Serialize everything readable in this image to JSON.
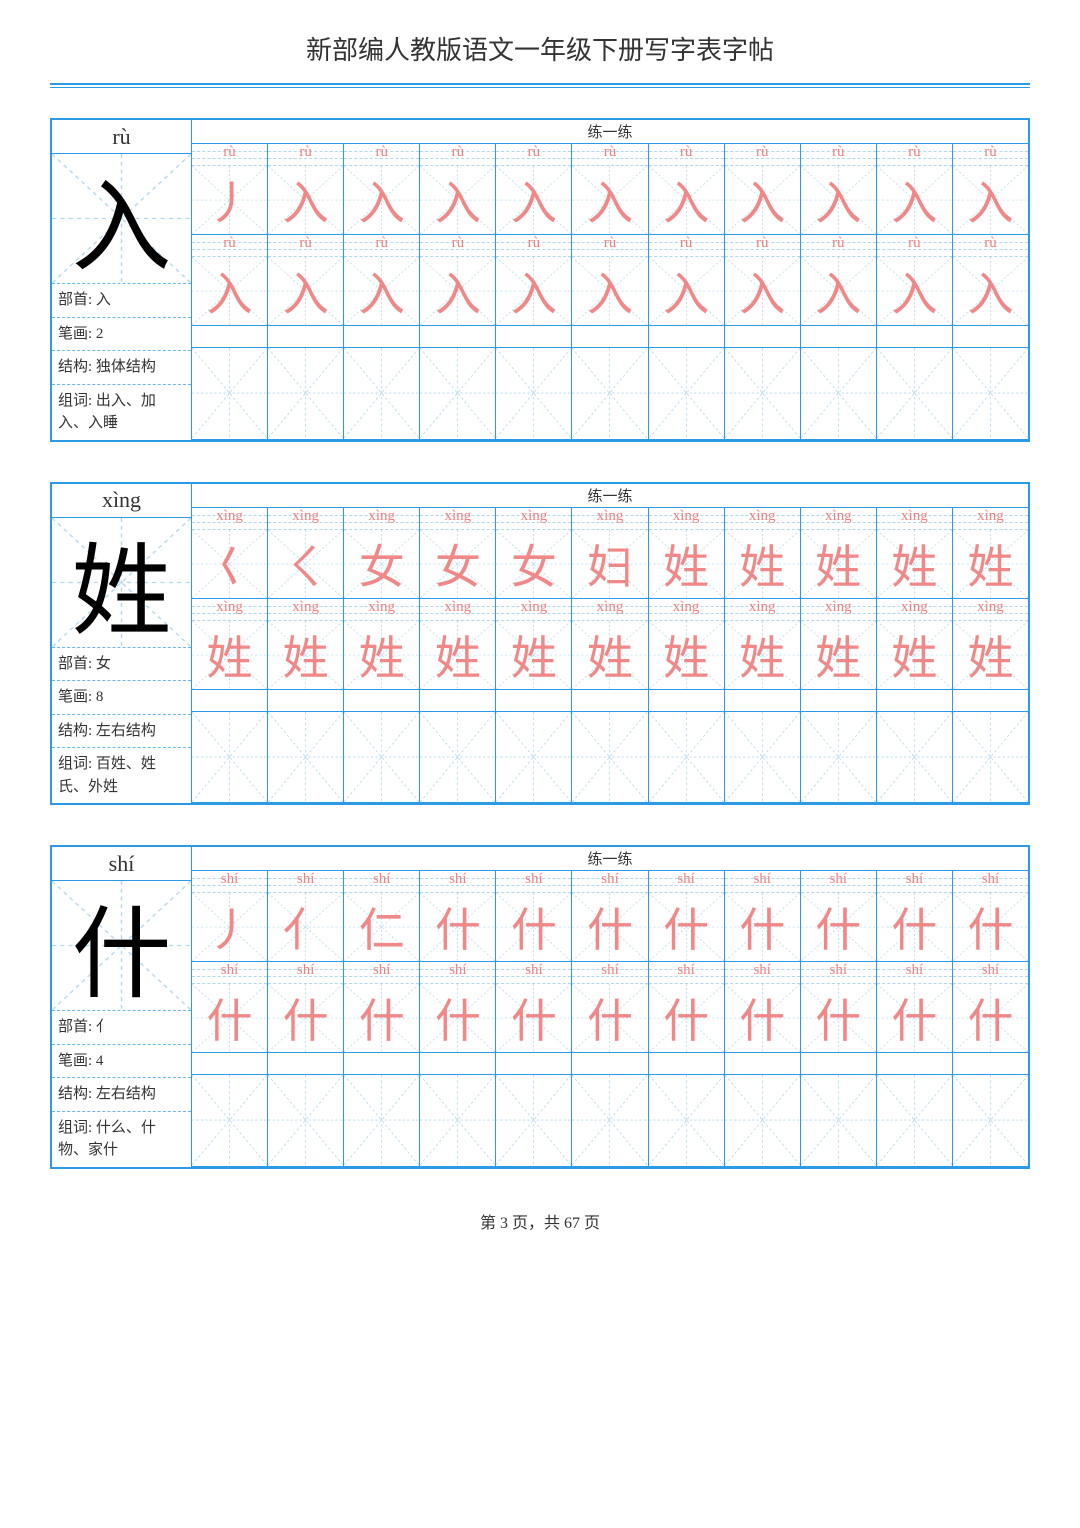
{
  "page": {
    "title": "新部编人教版语文一年级下册写字表字帖",
    "page_num": "第 3 页，共 67 页"
  },
  "practice_label": "练一练",
  "info_labels": {
    "radical": "部首:",
    "strokes": "笔画:",
    "structure": "结构:",
    "words": "组词:"
  },
  "colors": {
    "border": "#2b9be8",
    "trace": "#f08888",
    "guide": "#b0d8f0"
  },
  "chars": [
    {
      "pinyin": "rù",
      "char": "入",
      "radical": "入",
      "strokes": "2",
      "structure": "独体结构",
      "words": "出入、加入、入睡",
      "stroke_steps": [
        "丿",
        "入",
        "入",
        "入",
        "入",
        "入",
        "入",
        "入",
        "入",
        "入",
        "入"
      ]
    },
    {
      "pinyin": "xìng",
      "char": "姓",
      "radical": "女",
      "strokes": "8",
      "structure": "左右结构",
      "words": "百姓、姓氏、外姓",
      "stroke_steps": [
        "𡿨",
        "ㄑ",
        "女",
        "女",
        "女",
        "妇",
        "姓",
        "姓",
        "姓",
        "姓",
        "姓"
      ]
    },
    {
      "pinyin": "shí",
      "char": "什",
      "radical": "亻",
      "strokes": "4",
      "structure": "左右结构",
      "words": "什么、什物、家什",
      "stroke_steps": [
        "丿",
        "亻",
        "仁",
        "什",
        "什",
        "什",
        "什",
        "什",
        "什",
        "什",
        "什"
      ]
    }
  ]
}
